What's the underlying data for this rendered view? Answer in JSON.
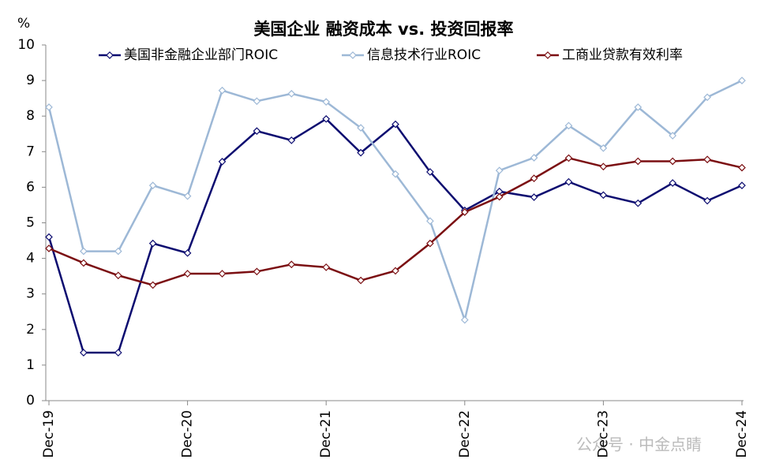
{
  "chart_data": {
    "type": "line",
    "title": "美国企业 融资成本 vs. 投资回报率",
    "y_label": "%",
    "watermark": "公众号 · 中金点睛",
    "categories": [
      "Dec-19",
      null,
      null,
      null,
      "Dec-20",
      null,
      null,
      null,
      "Dec-21",
      null,
      null,
      null,
      "Dec-22",
      null,
      null,
      null,
      "Dec-23",
      null,
      null,
      null,
      "Dec-24"
    ],
    "series": [
      {
        "name": "美国非金融企业部门ROIC",
        "color": "#0c0c70",
        "values": [
          4.6,
          1.35,
          1.35,
          4.42,
          4.15,
          6.72,
          7.58,
          7.32,
          7.92,
          6.97,
          7.77,
          6.43,
          5.35,
          5.88,
          5.72,
          6.15,
          5.78,
          5.55,
          6.12,
          5.62,
          6.05
        ]
      },
      {
        "name": "信息技术行业ROIC",
        "color": "#9db8d6",
        "values": [
          8.25,
          4.2,
          4.2,
          6.05,
          5.75,
          8.72,
          8.42,
          8.63,
          8.4,
          7.67,
          6.37,
          5.05,
          2.27,
          6.47,
          6.83,
          7.73,
          7.1,
          8.25,
          7.45,
          8.53,
          9.0
        ]
      },
      {
        "name": "工商业贷款有效利率",
        "color": "#7b0f12",
        "values": [
          4.28,
          3.87,
          3.52,
          3.25,
          3.57,
          3.57,
          3.63,
          3.83,
          3.75,
          3.38,
          3.65,
          4.42,
          5.3,
          5.73,
          6.25,
          6.82,
          6.58,
          6.73,
          6.73,
          6.78,
          6.55
        ]
      }
    ],
    "ylim": [
      0,
      10
    ],
    "yticks": [
      0,
      1,
      2,
      3,
      4,
      5,
      6,
      7,
      8,
      9,
      10
    ]
  }
}
